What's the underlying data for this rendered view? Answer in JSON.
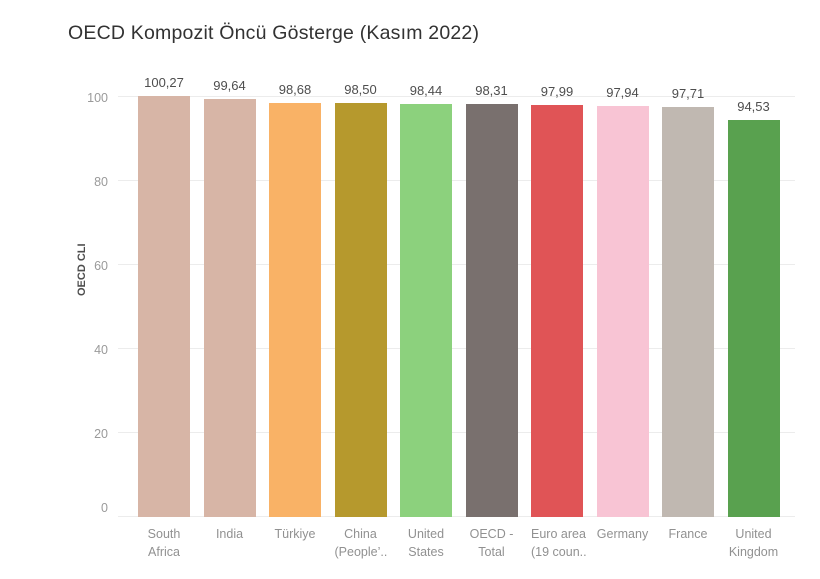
{
  "title": "OECD Kompozit Öncü Gösterge (Kasım 2022)",
  "colors": {
    "background": "#ffffff",
    "gridline": "#ececec",
    "title_text": "#323232",
    "tick_text": "#9a9a9a",
    "value_label_text": "#4e4e4e",
    "axis_title_text": "#4d4d4d"
  },
  "chart_data": {
    "type": "bar",
    "title": "OECD Kompozit Öncü Gösterge (Kasım 2022)",
    "xlabel": "",
    "ylabel": "OECD CLI",
    "ylim": [
      0,
      102
    ],
    "yticks": [
      0,
      20,
      40,
      60,
      80,
      100
    ],
    "grid": true,
    "legend": false,
    "decimal_separator": ",",
    "categories": [
      "South Africa",
      "India",
      "Türkiye",
      "China (People’..",
      "United States",
      "OECD - Total",
      "Euro area (19 coun..",
      "Germany",
      "France",
      "United Kingdom"
    ],
    "values": [
      100.27,
      99.64,
      98.68,
      98.5,
      98.44,
      98.31,
      97.99,
      97.94,
      97.71,
      94.53
    ],
    "value_labels": [
      "100,27",
      "99,64",
      "98,68",
      "98,50",
      "98,44",
      "98,31",
      "97,99",
      "97,94",
      "97,71",
      "94,53"
    ],
    "bar_colors": [
      "#D7B5A6",
      "#D7B5A6",
      "#F9B266",
      "#B6992D",
      "#8CD17D",
      "#79706E",
      "#E05456",
      "#F8C4D4",
      "#C0B8B1",
      "#59A14F"
    ],
    "category_label_lines": [
      [
        "South",
        "Africa"
      ],
      [
        "India"
      ],
      [
        "Türkiye"
      ],
      [
        "China",
        "(People’.."
      ],
      [
        "United",
        "States"
      ],
      [
        "OECD -",
        "Total"
      ],
      [
        "Euro area",
        "(19 coun.."
      ],
      [
        "Germany"
      ],
      [
        "France"
      ],
      [
        "United",
        "Kingdom"
      ]
    ]
  }
}
